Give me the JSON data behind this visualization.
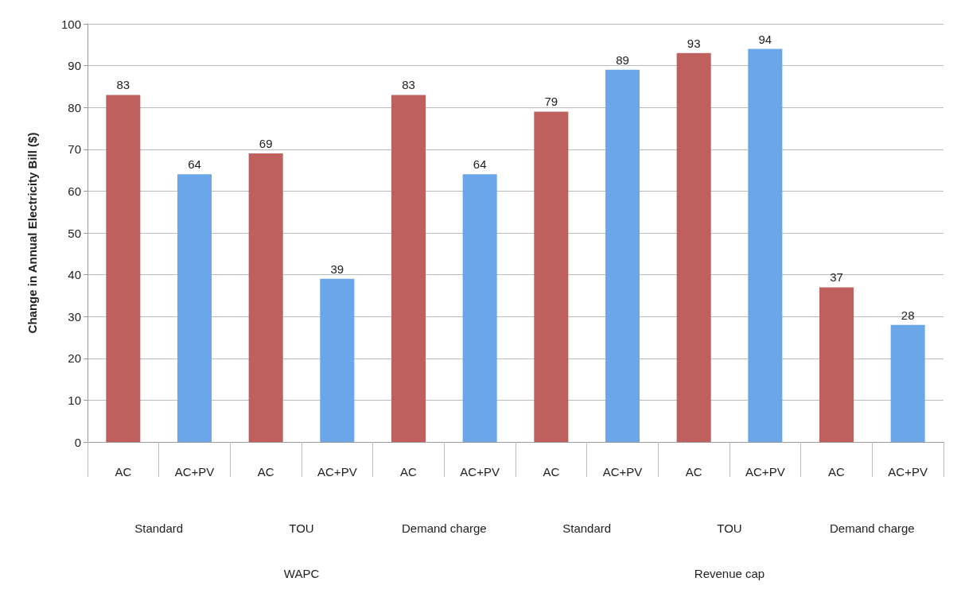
{
  "chart_data": {
    "type": "bar",
    "ylabel": "Change in Annual Electricity Bill ($)",
    "categories": [
      "AC",
      "AC+PV",
      "AC",
      "AC+PV",
      "AC",
      "AC+PV",
      "AC",
      "AC+PV",
      "AC",
      "AC+PV",
      "AC",
      "AC+PV"
    ],
    "values": [
      83,
      64,
      69,
      39,
      83,
      64,
      79,
      89,
      93,
      94,
      37,
      28
    ],
    "colors": [
      "#c0605e",
      "#6aa6e8",
      "#c0605e",
      "#6aa6e8",
      "#c0605e",
      "#6aa6e8",
      "#c0605e",
      "#6aa6e8",
      "#c0605e",
      "#6aa6e8",
      "#c0605e",
      "#6aa6e8"
    ],
    "ylim": [
      0,
      100
    ],
    "yticks": [
      0,
      10,
      20,
      30,
      40,
      50,
      60,
      70,
      80,
      90,
      100
    ],
    "grid": "y",
    "data_labels": true,
    "annotations": [
      "Standard",
      "TOU",
      "Demand charge",
      "Standard",
      "TOU",
      "Demand charge",
      "WAPC",
      "Revenue cap"
    ]
  }
}
